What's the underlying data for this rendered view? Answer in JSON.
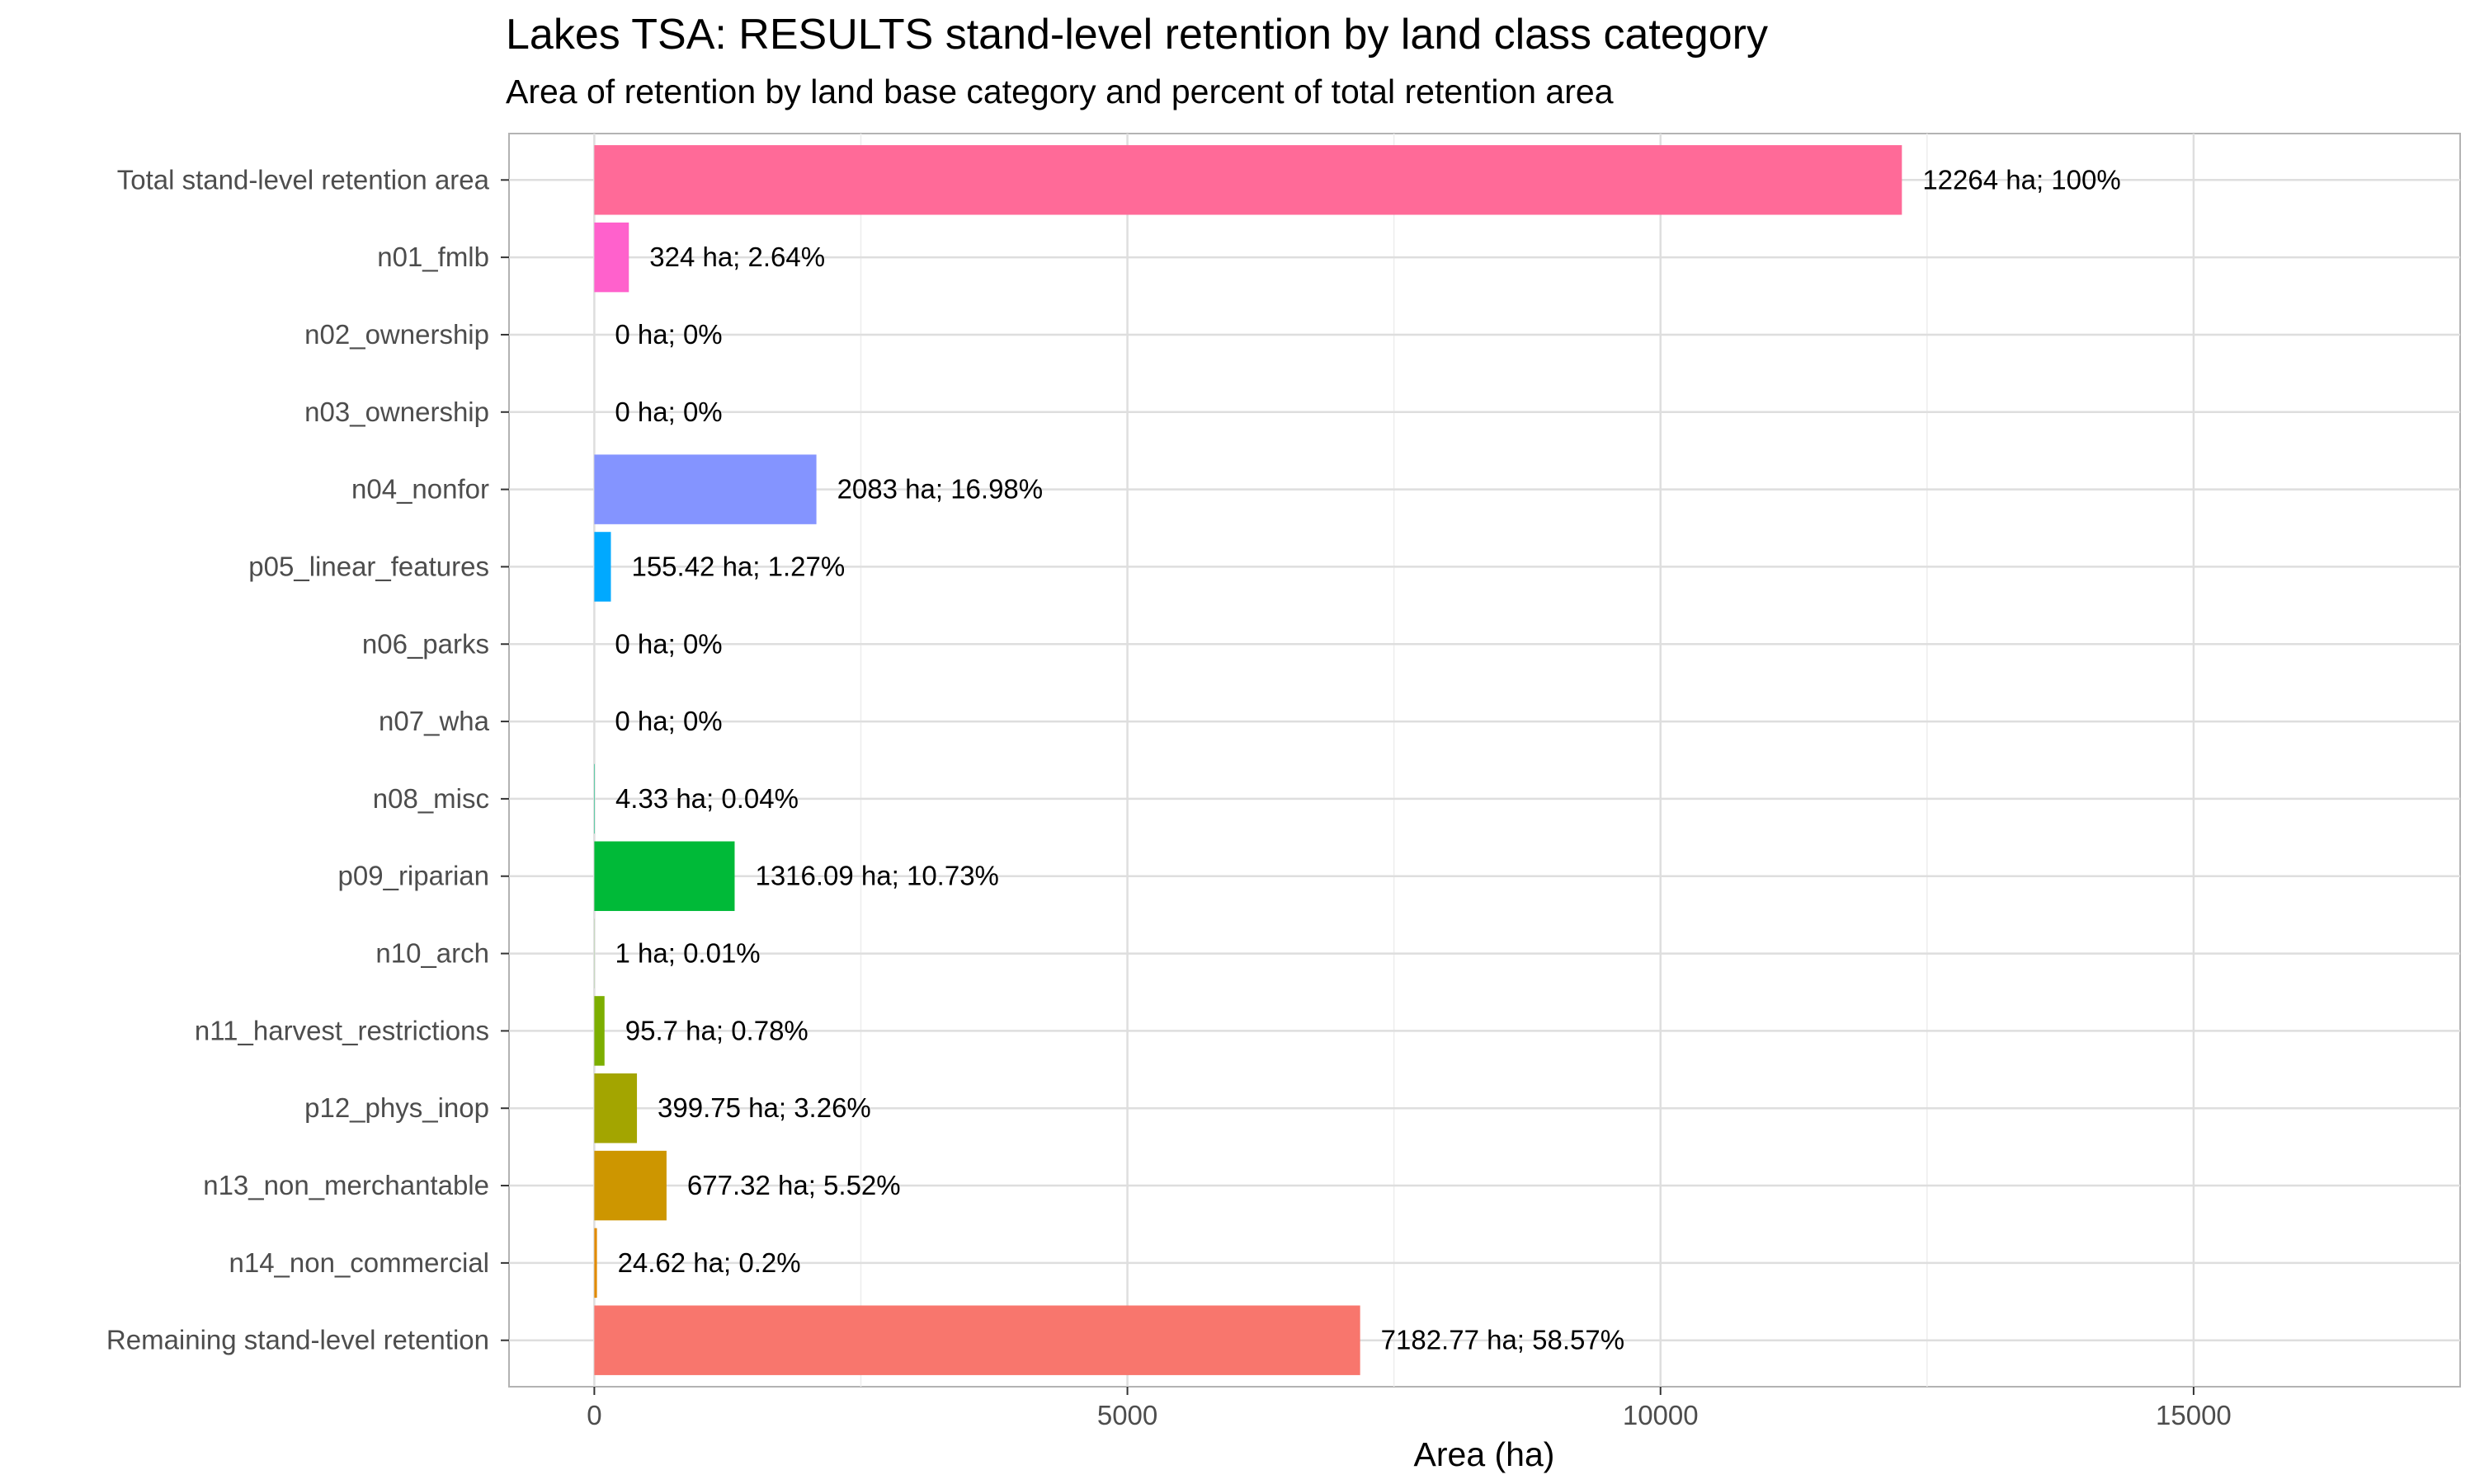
{
  "title": "Lakes TSA: RESULTS stand-level retention by land class category",
  "subtitle": "Area of retention by land base category and percent of total retention area",
  "chart_data": {
    "type": "bar",
    "orientation": "horizontal",
    "xlabel": "Area (ha)",
    "ylabel": "",
    "xlim": [
      -800,
      17500
    ],
    "x_ticks": [
      0,
      5000,
      10000,
      15000
    ],
    "x_tick_labels": [
      "0",
      "5000",
      "10000",
      "15000"
    ],
    "grid": true,
    "categories": [
      "Total stand-level retention area",
      "n01_fmlb",
      "n02_ownership",
      "n03_ownership",
      "n04_nonfor",
      "p05_linear_features",
      "n06_parks",
      "n07_wha",
      "n08_misc",
      "p09_riparian",
      "n10_arch",
      "n11_harvest_restrictions",
      "p12_phys_inop",
      "n13_non_merchantable",
      "n14_non_commercial",
      "Remaining stand-level retention"
    ],
    "values": [
      12264,
      324,
      0,
      0,
      2083,
      155.42,
      0,
      0,
      4.33,
      1316.09,
      1,
      95.7,
      399.75,
      677.32,
      24.62,
      7182.77
    ],
    "bar_labels": [
      "12264 ha; 100%",
      "324 ha; 2.64%",
      "0 ha; 0%",
      "0 ha; 0%",
      "2083 ha; 16.98%",
      "155.42 ha; 1.27%",
      "0 ha; 0%",
      "0 ha; 0%",
      "4.33 ha; 0.04%",
      "1316.09 ha; 10.73%",
      "1 ha; 0.01%",
      "95.7 ha; 0.78%",
      "399.75 ha; 3.26%",
      "677.32 ha; 5.52%",
      "24.62 ha; 0.2%",
      "7182.77 ha; 58.57%"
    ],
    "colors": [
      "#FF6A98",
      "#FF61CC",
      "#E76BF3",
      "#C77CFF",
      "#8494FF",
      "#00A9FF",
      "#00B8E7",
      "#00C1A9",
      "#00BF7D",
      "#00BA38",
      "#39B600",
      "#7CAE00",
      "#A3A500",
      "#CD9600",
      "#E18A00",
      "#F8766D"
    ]
  }
}
